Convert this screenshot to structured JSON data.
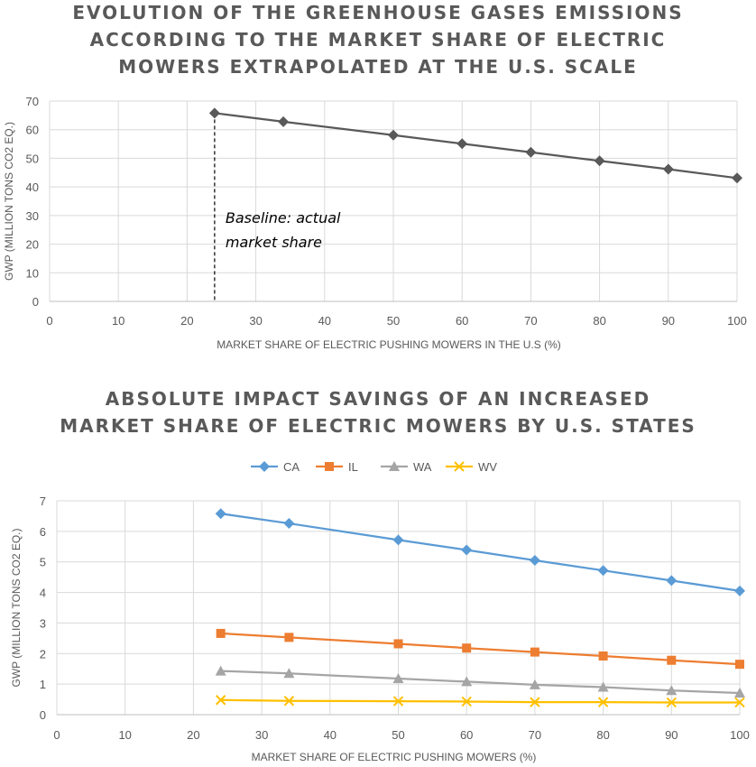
{
  "chart_data": [
    {
      "type": "line",
      "title_lines": [
        "EVOLUTION OF THE GREENHOUSE GASES EMISSIONS",
        "ACCORDING TO THE MARKET SHARE OF ELECTRIC",
        "MOWERS EXTRAPOLATED AT THE U.S. SCALE"
      ],
      "xlabel": "MARKET SHARE OF ELECTRIC PUSHING MOWERS IN THE U.S (%)",
      "ylabel": "GWP (MILLION TONS CO2 EQ.)",
      "xlim": [
        0,
        100
      ],
      "ylim": [
        0,
        70
      ],
      "xticks": [
        0,
        10,
        20,
        30,
        40,
        50,
        60,
        70,
        80,
        90,
        100
      ],
      "yticks": [
        0,
        10,
        20,
        30,
        40,
        50,
        60,
        70
      ],
      "grid": true,
      "series": [
        {
          "color": "#595959",
          "marker": "diamond",
          "x": [
            24,
            34,
            50,
            60,
            70,
            80,
            90,
            100
          ],
          "y": [
            65.8,
            62.8,
            58.1,
            55.1,
            52.1,
            49.1,
            46.2,
            43.1
          ]
        }
      ],
      "baseline": {
        "x": 24,
        "label_lines": [
          "Baseline: actual",
          "market share"
        ]
      }
    },
    {
      "type": "line",
      "title_lines": [
        "ABSOLUTE IMPACT SAVINGS OF AN INCREASED",
        "MARKET SHARE OF ELECTRIC MOWERS BY U.S. STATES"
      ],
      "xlabel": "MARKET SHARE OF ELECTRIC PUSHING MOWERS (%)",
      "ylabel": "GWP (MILLION TONS CO2 EQ.)",
      "xlim": [
        0,
        100
      ],
      "ylim": [
        0,
        7
      ],
      "xticks": [
        0,
        10,
        20,
        30,
        40,
        50,
        60,
        70,
        80,
        90,
        100
      ],
      "yticks": [
        0,
        1,
        2,
        3,
        4,
        5,
        6,
        7
      ],
      "grid": true,
      "legend_position": "top",
      "series": [
        {
          "name": "CA",
          "color": "#5B9BD5",
          "marker": "diamond",
          "x": [
            24,
            34,
            50,
            60,
            70,
            80,
            90,
            100
          ],
          "y": [
            6.58,
            6.26,
            5.72,
            5.39,
            5.05,
            4.72,
            4.39,
            4.05
          ]
        },
        {
          "name": "IL",
          "color": "#ED7D31",
          "marker": "square",
          "x": [
            24,
            34,
            50,
            60,
            70,
            80,
            90,
            100
          ],
          "y": [
            2.66,
            2.53,
            2.32,
            2.18,
            2.05,
            1.92,
            1.78,
            1.65
          ]
        },
        {
          "name": "WA",
          "color": "#A5A5A5",
          "marker": "triangle",
          "x": [
            24,
            34,
            50,
            60,
            70,
            80,
            90,
            100
          ],
          "y": [
            1.43,
            1.35,
            1.18,
            1.08,
            0.98,
            0.9,
            0.79,
            0.71
          ]
        },
        {
          "name": "WV",
          "color": "#FFC000",
          "marker": "x",
          "x": [
            24,
            34,
            50,
            60,
            70,
            80,
            90,
            100
          ],
          "y": [
            0.48,
            0.45,
            0.44,
            0.43,
            0.41,
            0.41,
            0.4,
            0.4
          ]
        }
      ]
    }
  ]
}
